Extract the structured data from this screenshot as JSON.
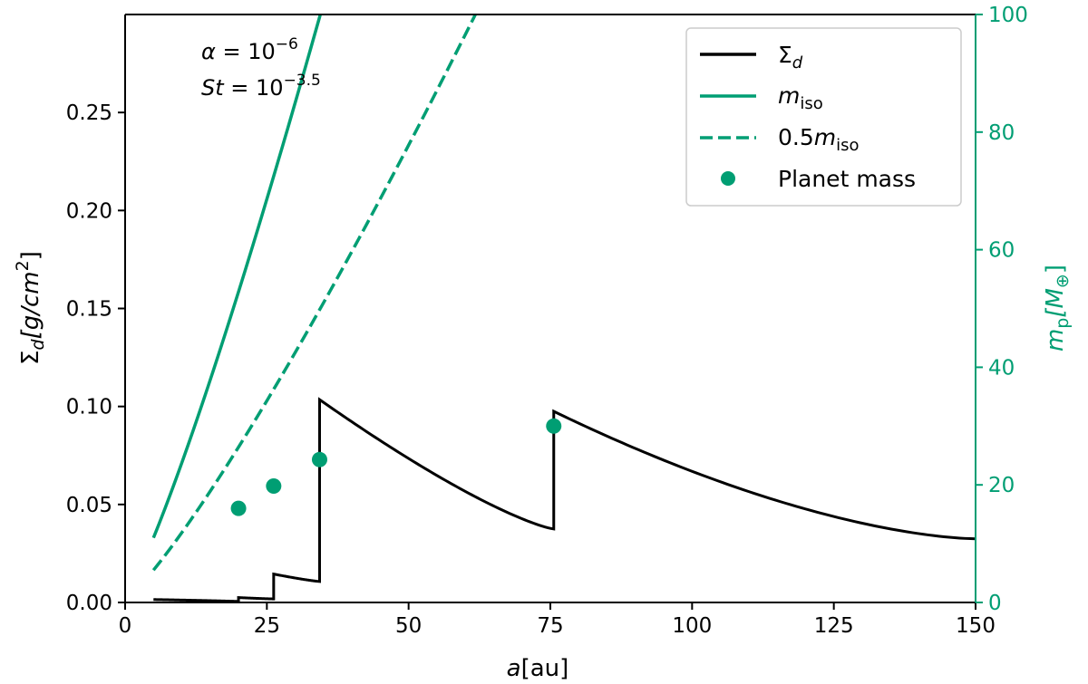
{
  "colors": {
    "sigma": "#000000",
    "teal": "#009e73"
  },
  "chart_data": {
    "type": "line",
    "x_axis": {
      "label_main": "a",
      "label_unit": "[au]",
      "range": [
        0,
        150
      ],
      "ticks": [
        0,
        25,
        50,
        75,
        100,
        125,
        150
      ],
      "tick_labels": [
        "0",
        "25",
        "50",
        "75",
        "100",
        "125",
        "150"
      ]
    },
    "y_left": {
      "label_sym": "Σ",
      "label_sub": "d",
      "label_unit_pre": "[g/cm",
      "label_unit_sup": "2",
      "label_unit_post": "]",
      "range": [
        0,
        0.3
      ],
      "ticks": [
        0,
        0.05,
        0.1,
        0.15,
        0.2,
        0.25
      ],
      "tick_labels": [
        "0.00",
        "0.05",
        "0.10",
        "0.15",
        "0.20",
        "0.25"
      ]
    },
    "y_right": {
      "label_sym": "m",
      "label_sub": "p",
      "label_unit_pre": "[M",
      "label_unit_sub": "⊕",
      "label_unit_post": "]",
      "range": [
        0,
        100
      ],
      "ticks": [
        0,
        20,
        40,
        60,
        80,
        100
      ],
      "tick_labels": [
        "0",
        "20",
        "40",
        "60",
        "80",
        "100"
      ]
    },
    "annotations": {
      "alpha_lhs": "α",
      "alpha_eq": " = 10",
      "alpha_exp": "−6",
      "st_lhs": "St",
      "st_eq": " = 10",
      "st_exp": "−3.5"
    },
    "legend": {
      "placement": "top-right",
      "entries": [
        {
          "sym": "Σ",
          "sub": "d",
          "style": "solid-black"
        },
        {
          "sym": "m",
          "sub": "iso",
          "style": "solid-teal"
        },
        {
          "pre": "0.5",
          "sym": "m",
          "sub": "iso",
          "style": "dashed-teal"
        },
        {
          "label": "Planet mass",
          "style": "marker-teal"
        }
      ]
    },
    "series": [
      {
        "id": "sigma_d",
        "axis": "left",
        "segments": [
          {
            "x0": 5.0,
            "x1": 20.0,
            "y0": 0.0015,
            "y1": 0.0005,
            "p": 0.8
          },
          {
            "x0": 20.0,
            "x1": 26.2,
            "y0": 0.0025,
            "y1": 0.0018,
            "p": 1.2
          },
          {
            "x0": 26.2,
            "x1": 34.3,
            "y0": 0.0145,
            "y1": 0.0107,
            "p": 1.2
          },
          {
            "x0": 34.3,
            "x1": 75.6,
            "y0": 0.1035,
            "y1": 0.0375,
            "p": 1.27
          },
          {
            "x0": 75.6,
            "x1": 150.0,
            "y0": 0.0975,
            "y1": 0.0325,
            "p": 1.6
          }
        ]
      },
      {
        "id": "m_iso",
        "axis": "right",
        "x_range": [
          5.0,
          85.5
        ],
        "params": {
          "A": 0.56,
          "B": 1.2,
          "x_ref": 5.0,
          "y_ref": 11.0
        }
      },
      {
        "id": "half_m_iso",
        "axis": "right",
        "x_range": [
          5.0,
          150.0
        ],
        "params": {
          "A": 0.56,
          "B": 1.2,
          "x_ref": 5.0,
          "y_ref": 11.0,
          "factor": 0.5
        }
      },
      {
        "id": "planet_mass",
        "axis": "right",
        "points": [
          {
            "x": 20.0,
            "y": 16.0
          },
          {
            "x": 26.2,
            "y": 19.8
          },
          {
            "x": 34.3,
            "y": 24.3
          },
          {
            "x": 75.6,
            "y": 30.0
          }
        ]
      }
    ]
  }
}
